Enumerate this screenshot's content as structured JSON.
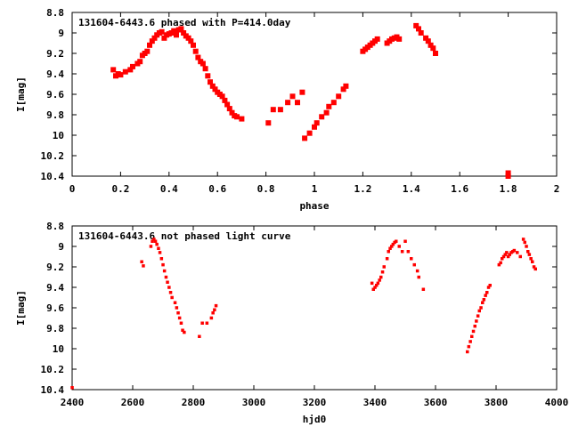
{
  "chart_data": [
    {
      "type": "scatter",
      "title": "131604-6443.6 phased with P=414.0day",
      "xlabel": "phase",
      "ylabel": "I[mag]",
      "xlim": [
        0,
        2
      ],
      "ylim": [
        8.8,
        10.4
      ],
      "y_inverted": true,
      "xticks": [
        0,
        0.2,
        0.4,
        0.6,
        0.8,
        1,
        1.2,
        1.4,
        1.6,
        1.8,
        2
      ],
      "xtick_labels": [
        "0",
        "0.2",
        "0.4",
        "0.6",
        "0.8",
        "1",
        "1.2",
        "1.4",
        "1.6",
        "1.8",
        "2"
      ],
      "yticks": [
        8.8,
        9,
        9.2,
        9.4,
        9.6,
        9.8,
        10,
        10.2,
        10.4
      ],
      "ytick_labels": [
        "8.8",
        "9",
        "9.2",
        "9.4",
        "9.6",
        "9.8",
        "10",
        "10.2",
        "10.4"
      ],
      "marker_color": "#ff0000",
      "x": [
        0.17,
        0.18,
        0.19,
        0.2,
        0.22,
        0.24,
        0.25,
        0.27,
        0.28,
        0.29,
        0.3,
        0.31,
        0.32,
        0.33,
        0.34,
        0.35,
        0.36,
        0.37,
        0.38,
        0.39,
        0.4,
        0.41,
        0.42,
        0.43,
        0.44,
        0.45,
        0.46,
        0.47,
        0.48,
        0.49,
        0.5,
        0.51,
        0.52,
        0.53,
        0.54,
        0.55,
        0.56,
        0.57,
        0.58,
        0.59,
        0.6,
        0.61,
        0.62,
        0.63,
        0.64,
        0.65,
        0.66,
        0.67,
        0.68,
        0.7,
        0.81,
        0.83,
        0.86,
        0.89,
        0.91,
        0.93,
        0.95,
        0.96,
        0.98,
        1.0,
        1.01,
        1.03,
        1.05,
        1.06,
        1.08,
        1.1,
        1.12,
        1.13,
        1.2,
        1.21,
        1.22,
        1.23,
        1.24,
        1.25,
        1.26,
        1.3,
        1.31,
        1.32,
        1.33,
        1.34,
        1.35,
        1.42,
        1.43,
        1.44,
        1.46,
        1.47,
        1.48,
        1.49,
        1.5,
        1.8,
        1.8
      ],
      "y": [
        9.36,
        9.42,
        9.4,
        9.41,
        9.38,
        9.36,
        9.33,
        9.3,
        9.28,
        9.22,
        9.2,
        9.18,
        9.12,
        9.08,
        9.05,
        9.02,
        9.0,
        8.99,
        9.05,
        9.02,
        9.01,
        9.0,
        8.98,
        9.02,
        8.97,
        8.96,
        9.0,
        9.03,
        9.05,
        9.08,
        9.12,
        9.18,
        9.24,
        9.28,
        9.3,
        9.35,
        9.42,
        9.48,
        9.52,
        9.55,
        9.58,
        9.6,
        9.62,
        9.66,
        9.7,
        9.74,
        9.78,
        9.81,
        9.82,
        9.84,
        9.88,
        9.75,
        9.75,
        9.68,
        9.62,
        9.68,
        9.58,
        10.03,
        9.98,
        9.92,
        9.88,
        9.82,
        9.78,
        9.72,
        9.68,
        9.62,
        9.55,
        9.52,
        9.18,
        9.16,
        9.14,
        9.12,
        9.1,
        9.08,
        9.06,
        9.1,
        9.08,
        9.06,
        9.05,
        9.04,
        9.06,
        8.93,
        8.96,
        9.0,
        9.05,
        9.08,
        9.12,
        9.15,
        9.2,
        10.37,
        10.4
      ]
    },
    {
      "type": "scatter",
      "title": "131604-6443.6 not phased light curve",
      "xlabel": "hjd0",
      "ylabel": "I[mag]",
      "xlim": [
        2400,
        4000
      ],
      "ylim": [
        8.8,
        10.4
      ],
      "y_inverted": true,
      "xticks": [
        2400,
        2600,
        2800,
        3000,
        3200,
        3400,
        3600,
        3800,
        4000
      ],
      "xtick_labels": [
        "2400",
        "2600",
        "2800",
        "3000",
        "3200",
        "3400",
        "3600",
        "3800",
        "4000"
      ],
      "yticks": [
        8.8,
        9,
        9.2,
        9.4,
        9.6,
        9.8,
        10,
        10.2,
        10.4
      ],
      "ytick_labels": [
        "8.8",
        "9",
        "9.2",
        "9.4",
        "9.6",
        "9.8",
        "10",
        "10.2",
        "10.4"
      ],
      "marker_color": "#ff0000",
      "x": [
        2400,
        2630,
        2635,
        2660,
        2665,
        2670,
        2675,
        2680,
        2685,
        2690,
        2695,
        2700,
        2705,
        2710,
        2715,
        2720,
        2725,
        2730,
        2740,
        2745,
        2750,
        2755,
        2760,
        2765,
        2770,
        2820,
        2830,
        2845,
        2860,
        2865,
        2870,
        2875,
        3390,
        3395,
        3400,
        3405,
        3410,
        3415,
        3420,
        3425,
        3430,
        3440,
        3445,
        3450,
        3455,
        3460,
        3465,
        3470,
        3480,
        3490,
        3500,
        3510,
        3520,
        3530,
        3540,
        3545,
        3560,
        3705,
        3710,
        3715,
        3720,
        3725,
        3730,
        3735,
        3740,
        3745,
        3750,
        3755,
        3760,
        3765,
        3770,
        3775,
        3780,
        3810,
        3815,
        3820,
        3825,
        3830,
        3835,
        3840,
        3845,
        3850,
        3855,
        3860,
        3870,
        3880,
        3890,
        3895,
        3900,
        3905,
        3910,
        3915,
        3920,
        3925,
        3930
      ],
      "y": [
        10.38,
        9.15,
        9.19,
        9.0,
        8.95,
        8.93,
        8.95,
        8.98,
        9.02,
        9.06,
        9.12,
        9.18,
        9.24,
        9.3,
        9.35,
        9.4,
        9.45,
        9.5,
        9.55,
        9.6,
        9.65,
        9.7,
        9.75,
        9.82,
        9.84,
        9.88,
        9.75,
        9.75,
        9.7,
        9.65,
        9.62,
        9.58,
        9.36,
        9.42,
        9.4,
        9.38,
        9.36,
        9.33,
        9.3,
        9.25,
        9.2,
        9.12,
        9.05,
        9.02,
        9.0,
        8.98,
        8.96,
        8.95,
        9.0,
        9.05,
        8.95,
        9.05,
        9.12,
        9.18,
        9.24,
        9.3,
        9.42,
        10.03,
        9.98,
        9.93,
        9.88,
        9.83,
        9.78,
        9.73,
        9.68,
        9.63,
        9.6,
        9.55,
        9.52,
        9.48,
        9.45,
        9.4,
        9.38,
        9.18,
        9.16,
        9.12,
        9.1,
        9.08,
        9.06,
        9.1,
        9.08,
        9.06,
        9.05,
        9.04,
        9.06,
        9.1,
        8.93,
        8.96,
        9.0,
        9.05,
        9.08,
        9.12,
        9.15,
        9.2,
        9.22
      ]
    }
  ]
}
